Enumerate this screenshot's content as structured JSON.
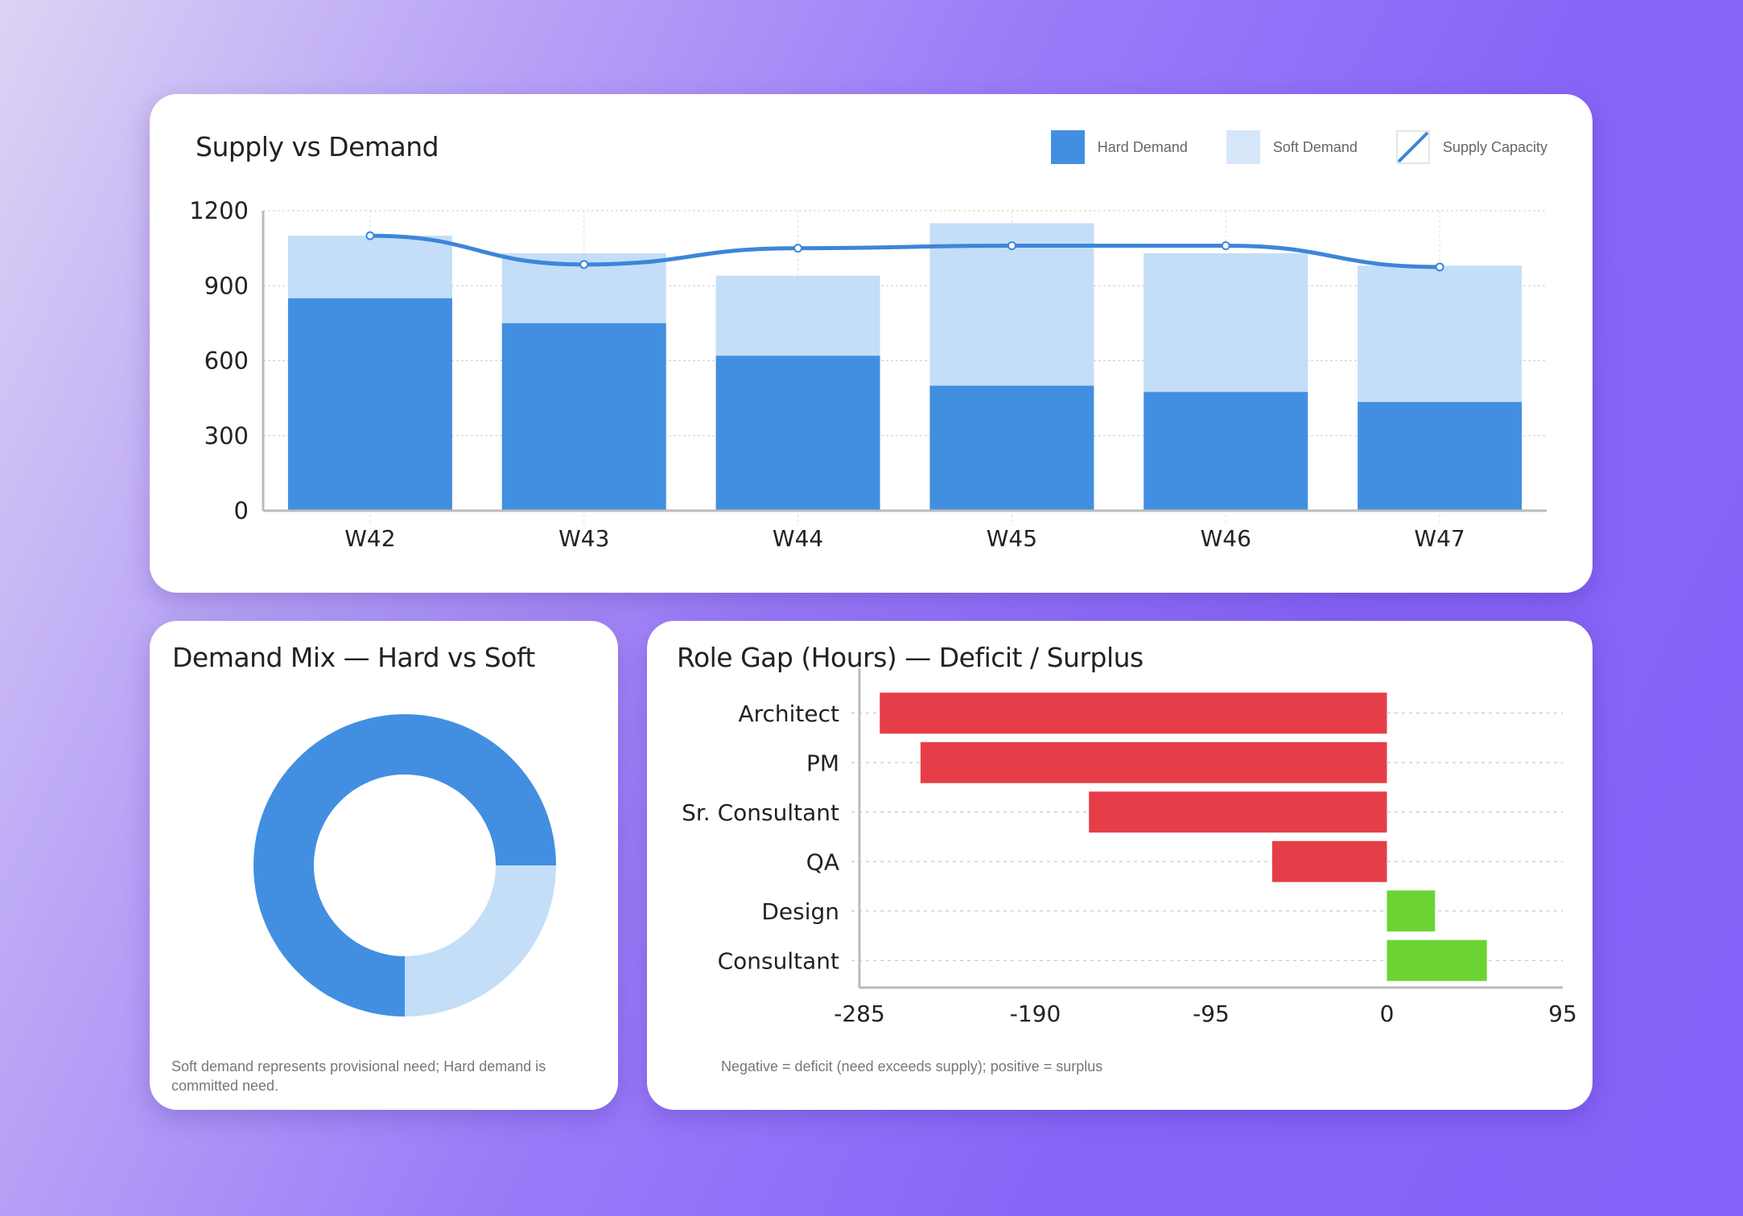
{
  "colors": {
    "hard": "#428fe2",
    "soft": "#c4def8",
    "supply": "#3c86d8",
    "deficit": "#e53e48",
    "surplus": "#6bd434"
  },
  "chart_data": [
    {
      "type": "bar",
      "title": "Supply vs Demand",
      "stacked": true,
      "categories": [
        "W42",
        "W43",
        "W44",
        "W45",
        "W46",
        "W47"
      ],
      "series": [
        {
          "name": "Hard Demand",
          "type": "bar",
          "values": [
            850,
            750,
            620,
            500,
            475,
            435
          ]
        },
        {
          "name": "Soft Demand",
          "type": "bar",
          "values": [
            250,
            280,
            320,
            650,
            555,
            545
          ]
        },
        {
          "name": "Supply Capacity",
          "type": "line",
          "values": [
            1100,
            985,
            1050,
            1060,
            1060,
            975
          ]
        }
      ],
      "yticks": [
        "0",
        "300",
        "600",
        "900",
        "1200"
      ],
      "ylim": [
        0,
        1200
      ],
      "grid": true,
      "legend": "top-right"
    },
    {
      "type": "pie",
      "title": "Demand Mix — Hard vs Soft",
      "donut": true,
      "slices": [
        {
          "value": 75
        },
        {
          "value": 25
        }
      ],
      "note": "Soft demand represents provisional need; Hard demand is committed need."
    },
    {
      "type": "bar",
      "orientation": "horizontal",
      "title": "Role Gap (Hours) — Deficit / Surplus",
      "categories": [
        "Architect",
        "PM",
        "Sr. Consultant",
        "QA",
        "Design",
        "Consultant"
      ],
      "values": [
        -274,
        -252,
        -161,
        -62,
        26,
        54
      ],
      "xticks": [
        "-285",
        "-190",
        "-95",
        "0",
        "95"
      ],
      "xlim": [
        -285,
        95
      ],
      "grid": true,
      "note": "Negative = deficit (need exceeds supply); positive = surplus"
    }
  ]
}
